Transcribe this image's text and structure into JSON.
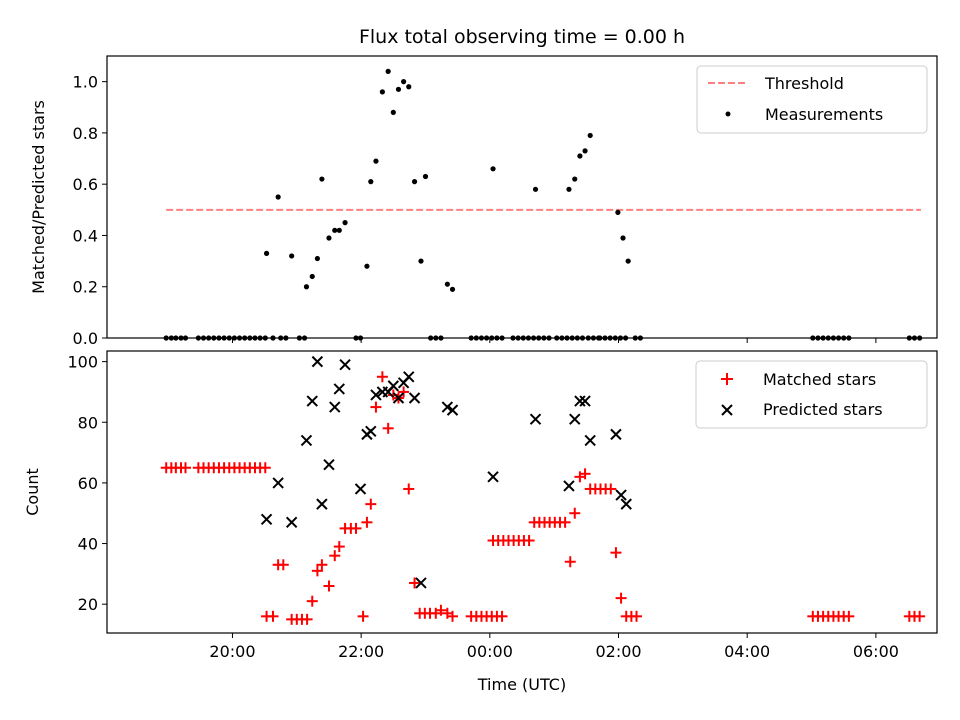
{
  "chart_data": [
    {
      "type": "scatter",
      "title": "Flux total observing time = 0.00 h",
      "ylabel": "Matched/Predicted stars",
      "xlabel": "",
      "xlim": [
        -0.95,
        11.95
      ],
      "ylim": [
        0,
        1.1
      ],
      "x_tick_values": [
        1,
        3,
        5,
        7,
        9,
        11
      ],
      "y_ticks": [
        "0.0",
        "0.2",
        "0.4",
        "0.6",
        "0.8",
        "1.0"
      ],
      "y_tick_values": [
        0,
        0.2,
        0.4,
        0.6,
        0.8,
        1.0
      ],
      "legend": {
        "placement": "upper right",
        "entries": [
          "Threshold",
          "Measurements"
        ]
      },
      "threshold": {
        "name": "Threshold",
        "value": 0.5,
        "x_range": [
          -0.03,
          11.7
        ],
        "color": "#ff8080",
        "style": "dashed"
      },
      "series": [
        {
          "name": "Measurements",
          "color": "#000000",
          "marker": "dot",
          "points": [
            [
              -0.03,
              0
            ],
            [
              0.05,
              0
            ],
            [
              0.12,
              0
            ],
            [
              0.2,
              0
            ],
            [
              0.27,
              0
            ],
            [
              0.47,
              0
            ],
            [
              0.55,
              0
            ],
            [
              0.63,
              0
            ],
            [
              0.71,
              0
            ],
            [
              0.79,
              0
            ],
            [
              0.87,
              0
            ],
            [
              0.95,
              0
            ],
            [
              1.03,
              0
            ],
            [
              1.11,
              0
            ],
            [
              1.19,
              0
            ],
            [
              1.27,
              0
            ],
            [
              1.35,
              0
            ],
            [
              1.43,
              0
            ],
            [
              1.51,
              0
            ],
            [
              1.63,
              0
            ],
            [
              1.75,
              0
            ],
            [
              1.83,
              0
            ],
            [
              2.04,
              0
            ],
            [
              2.12,
              0
            ],
            [
              1.53,
              0.33
            ],
            [
              1.71,
              0.55
            ],
            [
              1.92,
              0.32
            ],
            [
              2.15,
              0.2
            ],
            [
              2.24,
              0.24
            ],
            [
              2.32,
              0.31
            ],
            [
              2.39,
              0.62
            ],
            [
              2.5,
              0.39
            ],
            [
              2.59,
              0.42
            ],
            [
              2.66,
              0.42
            ],
            [
              2.75,
              0.45
            ],
            [
              2.92,
              0
            ],
            [
              2.99,
              0
            ],
            [
              3.09,
              0.28
            ],
            [
              3.15,
              0.61
            ],
            [
              3.23,
              0.69
            ],
            [
              3.33,
              0.96
            ],
            [
              3.42,
              1.04
            ],
            [
              3.5,
              0.88
            ],
            [
              3.58,
              0.97
            ],
            [
              3.66,
              1.0
            ],
            [
              3.74,
              0.98
            ],
            [
              3.83,
              0.61
            ],
            [
              3.93,
              0.3
            ],
            [
              4.0,
              0.63
            ],
            [
              4.08,
              0
            ],
            [
              4.16,
              0
            ],
            [
              4.24,
              0
            ],
            [
              4.34,
              0.21
            ],
            [
              4.42,
              0.19
            ],
            [
              4.71,
              0
            ],
            [
              4.79,
              0
            ],
            [
              4.87,
              0
            ],
            [
              4.95,
              0
            ],
            [
              5.03,
              0
            ],
            [
              5.11,
              0
            ],
            [
              5.19,
              0
            ],
            [
              5.36,
              0
            ],
            [
              5.44,
              0
            ],
            [
              5.52,
              0
            ],
            [
              5.6,
              0
            ],
            [
              5.68,
              0
            ],
            [
              5.76,
              0
            ],
            [
              5.84,
              0
            ],
            [
              5.92,
              0
            ],
            [
              6.04,
              0
            ],
            [
              6.12,
              0
            ],
            [
              6.2,
              0
            ],
            [
              6.28,
              0
            ],
            [
              6.36,
              0
            ],
            [
              6.44,
              0
            ],
            [
              6.53,
              0
            ],
            [
              6.61,
              0
            ],
            [
              6.69,
              0
            ],
            [
              5.05,
              0.66
            ],
            [
              5.71,
              0.58
            ],
            [
              6.23,
              0.58
            ],
            [
              6.32,
              0.62
            ],
            [
              6.4,
              0.71
            ],
            [
              6.48,
              0.73
            ],
            [
              6.56,
              0.79
            ],
            [
              6.71,
              0
            ],
            [
              6.79,
              0
            ],
            [
              6.87,
              0
            ],
            [
              6.95,
              0
            ],
            [
              7.03,
              0
            ],
            [
              7.11,
              0
            ],
            [
              6.99,
              0.49
            ],
            [
              7.07,
              0.39
            ],
            [
              7.15,
              0.3
            ],
            [
              7.26,
              0
            ],
            [
              7.34,
              0
            ],
            [
              10.02,
              0
            ],
            [
              10.1,
              0
            ],
            [
              10.18,
              0
            ],
            [
              10.26,
              0
            ],
            [
              10.34,
              0
            ],
            [
              10.42,
              0
            ],
            [
              10.5,
              0
            ],
            [
              10.58,
              0
            ],
            [
              11.52,
              0
            ],
            [
              11.6,
              0
            ],
            [
              11.68,
              0
            ]
          ]
        }
      ]
    },
    {
      "type": "scatter",
      "title": "",
      "xlabel": "Time (UTC)",
      "ylabel": "Count",
      "xlim": [
        -0.95,
        11.95
      ],
      "ylim": [
        10.5,
        103.5
      ],
      "x_ticks": [
        "20:00",
        "22:00",
        "00:00",
        "02:00",
        "04:00",
        "06:00"
      ],
      "x_tick_values": [
        1,
        3,
        5,
        7,
        9,
        11
      ],
      "y_ticks": [
        "20",
        "40",
        "60",
        "80",
        "100"
      ],
      "y_tick_values": [
        20,
        40,
        60,
        80,
        100
      ],
      "legend": {
        "placement": "upper right",
        "entries": [
          "Matched stars",
          "Predicted stars"
        ]
      },
      "series": [
        {
          "name": "Matched stars",
          "color": "#ff0000",
          "marker": "plus",
          "points": [
            [
              -0.03,
              65
            ],
            [
              0.05,
              65
            ],
            [
              0.12,
              65
            ],
            [
              0.2,
              65
            ],
            [
              0.27,
              65
            ],
            [
              0.47,
              65
            ],
            [
              0.55,
              65
            ],
            [
              0.63,
              65
            ],
            [
              0.71,
              65
            ],
            [
              0.79,
              65
            ],
            [
              0.87,
              65
            ],
            [
              0.95,
              65
            ],
            [
              1.03,
              65
            ],
            [
              1.11,
              65
            ],
            [
              1.19,
              65
            ],
            [
              1.27,
              65
            ],
            [
              1.35,
              65
            ],
            [
              1.43,
              65
            ],
            [
              1.51,
              65
            ],
            [
              1.53,
              16
            ],
            [
              1.63,
              16
            ],
            [
              1.71,
              33
            ],
            [
              1.79,
              33
            ],
            [
              1.92,
              15
            ],
            [
              2.0,
              15
            ],
            [
              2.08,
              15
            ],
            [
              2.16,
              15
            ],
            [
              2.24,
              21
            ],
            [
              2.32,
              31
            ],
            [
              2.39,
              33
            ],
            [
              2.5,
              26
            ],
            [
              2.59,
              36
            ],
            [
              2.66,
              39
            ],
            [
              2.75,
              45
            ],
            [
              2.84,
              45
            ],
            [
              2.92,
              45
            ],
            [
              3.03,
              16
            ],
            [
              3.09,
              47
            ],
            [
              3.15,
              53
            ],
            [
              3.23,
              85
            ],
            [
              3.33,
              95
            ],
            [
              3.42,
              78
            ],
            [
              3.5,
              89
            ],
            [
              3.58,
              88
            ],
            [
              3.66,
              90
            ],
            [
              3.74,
              58
            ],
            [
              3.83,
              27
            ],
            [
              3.91,
              17
            ],
            [
              3.99,
              17
            ],
            [
              4.07,
              17
            ],
            [
              4.16,
              17
            ],
            [
              4.24,
              18
            ],
            [
              4.34,
              17
            ],
            [
              4.42,
              16
            ],
            [
              4.71,
              16
            ],
            [
              4.79,
              16
            ],
            [
              4.87,
              16
            ],
            [
              4.95,
              16
            ],
            [
              5.03,
              16
            ],
            [
              5.11,
              16
            ],
            [
              5.19,
              16
            ],
            [
              5.05,
              41
            ],
            [
              5.13,
              41
            ],
            [
              5.21,
              41
            ],
            [
              5.29,
              41
            ],
            [
              5.37,
              41
            ],
            [
              5.45,
              41
            ],
            [
              5.53,
              41
            ],
            [
              5.61,
              41
            ],
            [
              5.69,
              47
            ],
            [
              5.77,
              47
            ],
            [
              5.85,
              47
            ],
            [
              5.93,
              47
            ],
            [
              6.01,
              47
            ],
            [
              6.09,
              47
            ],
            [
              6.17,
              47
            ],
            [
              6.25,
              34
            ],
            [
              6.32,
              50
            ],
            [
              6.4,
              62
            ],
            [
              6.48,
              63
            ],
            [
              6.56,
              58
            ],
            [
              6.64,
              58
            ],
            [
              6.72,
              58
            ],
            [
              6.8,
              58
            ],
            [
              6.88,
              58
            ],
            [
              6.96,
              37
            ],
            [
              7.04,
              22
            ],
            [
              7.12,
              16
            ],
            [
              7.2,
              16
            ],
            [
              7.28,
              16
            ],
            [
              10.02,
              16
            ],
            [
              10.1,
              16
            ],
            [
              10.18,
              16
            ],
            [
              10.26,
              16
            ],
            [
              10.34,
              16
            ],
            [
              10.42,
              16
            ],
            [
              10.5,
              16
            ],
            [
              10.58,
              16
            ],
            [
              11.52,
              16
            ],
            [
              11.6,
              16
            ],
            [
              11.68,
              16
            ]
          ]
        },
        {
          "name": "Predicted stars",
          "color": "#000000",
          "marker": "x",
          "points": [
            [
              1.53,
              48
            ],
            [
              1.71,
              60
            ],
            [
              1.92,
              47
            ],
            [
              2.15,
              74
            ],
            [
              2.24,
              87
            ],
            [
              2.32,
              100
            ],
            [
              2.39,
              53
            ],
            [
              2.5,
              66
            ],
            [
              2.59,
              85
            ],
            [
              2.66,
              91
            ],
            [
              2.75,
              99
            ],
            [
              2.99,
              58
            ],
            [
              3.09,
              76
            ],
            [
              3.15,
              77
            ],
            [
              3.23,
              89
            ],
            [
              3.33,
              90
            ],
            [
              3.42,
              90
            ],
            [
              3.5,
              92
            ],
            [
              3.58,
              88
            ],
            [
              3.66,
              93
            ],
            [
              3.74,
              95
            ],
            [
              3.83,
              88
            ],
            [
              3.93,
              27
            ],
            [
              4.34,
              85
            ],
            [
              4.42,
              84
            ],
            [
              5.05,
              62
            ],
            [
              5.71,
              81
            ],
            [
              6.23,
              59
            ],
            [
              6.32,
              81
            ],
            [
              6.4,
              87
            ],
            [
              6.48,
              87
            ],
            [
              6.56,
              74
            ],
            [
              6.96,
              76
            ],
            [
              7.04,
              56
            ],
            [
              7.12,
              53
            ]
          ]
        }
      ]
    }
  ]
}
